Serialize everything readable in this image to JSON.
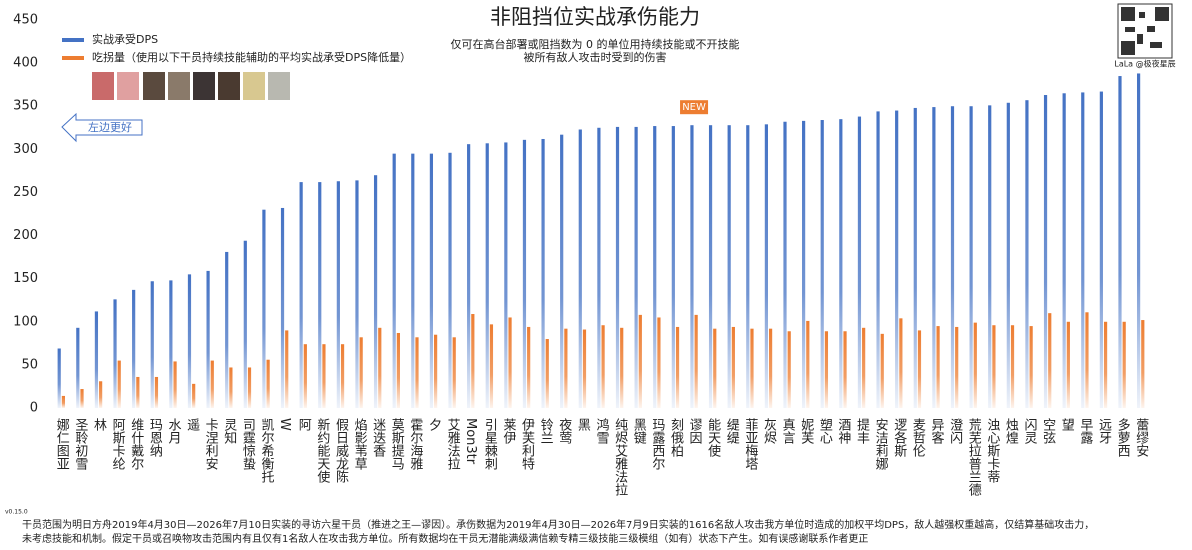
{
  "chart_data": {
    "type": "bar",
    "title": "非阻挡位实战承伤能力",
    "subtitle": [
      "仅可在高台部署或阻挡数为 0 的单位用持续技能或不开技能",
      "被所有敌人攻击时受到的伤害"
    ],
    "categories": [
      "娜仁图亚",
      "圣聆初雪",
      "林",
      "阿斯卡纶",
      "维什戴尔",
      "玛恩纳",
      "水月",
      "遥",
      "卡涅利安",
      "灵知",
      "司霆惊蛰",
      "凯尔希衡托",
      "W",
      "阿",
      "新约能天使",
      "假日威龙陈",
      "焰影苇草",
      "迷迭香",
      "莫斯提马",
      "霍尔海雅",
      "夕",
      "艾雅法拉",
      "Mon3tr",
      "引星棘刺",
      "莱伊",
      "伊芙利特",
      "铃兰",
      "夜莺",
      "黑",
      "鸿雪",
      "纯烬艾雅法拉",
      "黑键",
      "玛露西尔",
      "刻俄柏",
      "谬因",
      "能天使",
      "缇缇",
      "菲亚梅塔",
      "灰烬",
      "真言",
      "妮芙",
      "塑心",
      "酒神",
      "提丰",
      "安洁莉娜",
      "逻各斯",
      "麦哲伦",
      "异客",
      "澄闪",
      "荒芜拉普兰德",
      "浊心斯卡蒂",
      "烛煌",
      "闪灵",
      "空弦",
      "望",
      "早露",
      "远牙",
      "多萝西",
      "蕾缪安"
    ],
    "series": [
      {
        "name": "实战承受DPS",
        "color": "#4472c4",
        "values": [
          69,
          93,
          112,
          126,
          137,
          147,
          148,
          155,
          159,
          181,
          194,
          230,
          232,
          262,
          262,
          263,
          264,
          270,
          295,
          295,
          295,
          296,
          306,
          307,
          308,
          311,
          312,
          317,
          323,
          325,
          326,
          326,
          327,
          327,
          328,
          328,
          328,
          328,
          329,
          332,
          333,
          334,
          335,
          338,
          344,
          345,
          348,
          349,
          350,
          350,
          351,
          354,
          357,
          363,
          365,
          366,
          367,
          385,
          388
        ]
      },
      {
        "name": "吃拐量（使用以下干员持续技能辅助的平均实战承受DPS降低量）",
        "color": "#ed7d31",
        "values": [
          14,
          22,
          31,
          55,
          36,
          36,
          54,
          28,
          55,
          47,
          47,
          56,
          90,
          74,
          74,
          74,
          82,
          93,
          87,
          82,
          85,
          82,
          109,
          97,
          105,
          94,
          80,
          92,
          91,
          96,
          93,
          108,
          105,
          94,
          108,
          92,
          94,
          92,
          92,
          89,
          101,
          89,
          89,
          93,
          86,
          104,
          90,
          95,
          94,
          99,
          96,
          96,
          95,
          110,
          100,
          111,
          100,
          100,
          102
        ]
      }
    ],
    "ylim": [
      0,
      450
    ],
    "yticks": [
      0,
      50,
      100,
      150,
      200,
      250,
      300,
      350,
      400,
      450
    ],
    "annotations": [
      {
        "text": "NEW",
        "category": "谬因"
      },
      {
        "text": "左边更好"
      }
    ],
    "watermark": "LaLa @极夜星辰",
    "version": "v0.15.0",
    "footnote": [
      "干员范围为明日方舟2019年4月30日—2026年7月10日实装的寻访六星干员（推进之王—谬因）。承伤数据为2019年4月30日—2026年7月9日实装的1616名敌人攻击我方单位时造成的加权平均DPS，敌人越强权重越高，仅结算基础攻击力，",
      "未考虑技能和机制。假定干员或召唤物攻击范围内有且仅有1名敌人在攻击我方单位。所有数据均在干员无潜能满级满信赖专精三级技能三级模组（如有）状态下产生。如有误感谢联系作者更正"
    ]
  }
}
